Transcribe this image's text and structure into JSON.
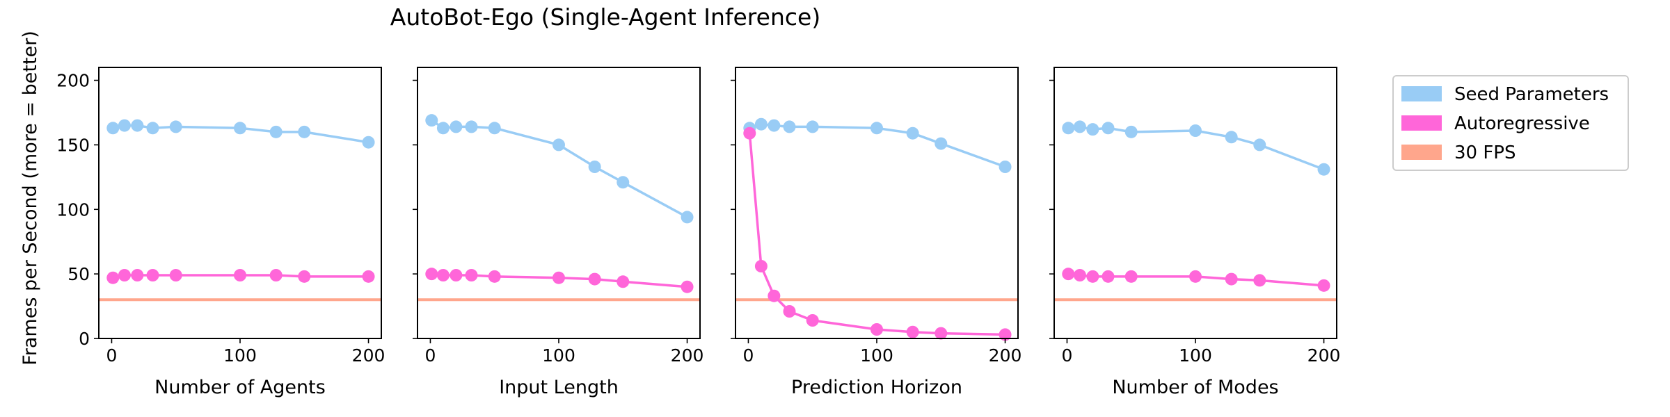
{
  "chart_data": {
    "type": "line",
    "title": "AutoBot-Ego (Single-Agent Inference)",
    "ylabel": "Frames per Second (more = better)",
    "ylim": [
      0,
      210
    ],
    "yticks": [
      0,
      50,
      100,
      150,
      200
    ],
    "xlim": [
      -10,
      210
    ],
    "xticks": [
      0,
      100,
      200
    ],
    "grid": false,
    "legend": {
      "placement": "right",
      "entries": [
        {
          "name": "Seed Parameters",
          "color": "#99CCF5"
        },
        {
          "name": "Autoregressive",
          "color": "#FF66D9"
        },
        {
          "name": "30 FPS",
          "color": "#FFA68C"
        }
      ]
    },
    "reference_line": {
      "name": "30 FPS",
      "y": 30,
      "color": "#FFA68C"
    },
    "panels": [
      {
        "xlabel": "Number of Agents",
        "x": [
          1,
          10,
          20,
          32,
          50,
          100,
          128,
          150,
          200
        ],
        "series": [
          {
            "name": "Seed Parameters",
            "color": "#99CCF5",
            "values": [
              163,
              165,
              165,
              163,
              164,
              163,
              160,
              160,
              152
            ]
          },
          {
            "name": "Autoregressive",
            "color": "#FF66D9",
            "values": [
              47,
              49,
              49,
              49,
              49,
              49,
              49,
              48,
              48
            ]
          }
        ]
      },
      {
        "xlabel": "Input Length",
        "x": [
          1,
          10,
          20,
          32,
          50,
          100,
          128,
          150,
          200
        ],
        "series": [
          {
            "name": "Seed Parameters",
            "color": "#99CCF5",
            "values": [
              169,
              163,
              164,
              164,
              163,
              150,
              133,
              121,
              94
            ]
          },
          {
            "name": "Autoregressive",
            "color": "#FF66D9",
            "values": [
              50,
              49,
              49,
              49,
              48,
              47,
              46,
              44,
              40
            ]
          }
        ]
      },
      {
        "xlabel": "Prediction Horizon",
        "x": [
          1,
          10,
          20,
          32,
          50,
          100,
          128,
          150,
          200
        ],
        "series": [
          {
            "name": "Seed Parameters",
            "color": "#99CCF5",
            "values": [
              163,
              166,
              165,
              164,
              164,
              163,
              159,
              151,
              133
            ]
          },
          {
            "name": "Autoregressive",
            "color": "#FF66D9",
            "values": [
              159,
              56,
              33,
              21,
              14,
              7,
              5,
              4,
              3
            ]
          }
        ]
      },
      {
        "xlabel": "Number of Modes",
        "x": [
          1,
          10,
          20,
          32,
          50,
          100,
          128,
          150,
          200
        ],
        "series": [
          {
            "name": "Seed Parameters",
            "color": "#99CCF5",
            "values": [
              163,
              164,
              162,
              163,
              160,
              161,
              156,
              150,
              131
            ]
          },
          {
            "name": "Autoregressive",
            "color": "#FF66D9",
            "values": [
              50,
              49,
              48,
              48,
              48,
              48,
              46,
              45,
              41
            ]
          }
        ]
      }
    ]
  }
}
